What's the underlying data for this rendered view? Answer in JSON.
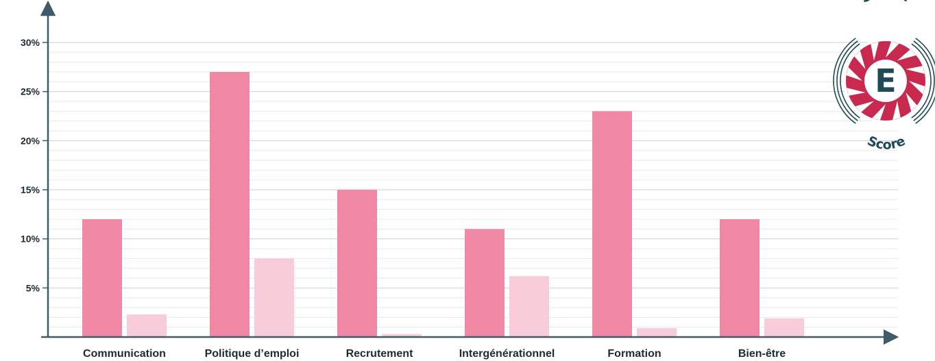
{
  "chart_data": {
    "type": "bar",
    "categories": [
      "Communication",
      "Politique d’emploi",
      "Recrutement",
      "Intergénérationnel",
      "Formation",
      "Bien-être"
    ],
    "series": [
      {
        "values": [
          12,
          27,
          15,
          11,
          23,
          12
        ]
      },
      {
        "values": [
          2.3,
          8,
          0.3,
          6.2,
          0.9,
          1.9
        ]
      }
    ],
    "ylim": [
      0,
      30
    ],
    "y_ticks": [
      5,
      10,
      15,
      20,
      25,
      30
    ],
    "y_tick_labels": [
      "5%",
      "10%",
      "15%",
      "20%",
      "25%",
      "30%"
    ],
    "grid": true,
    "colors": {
      "series_1": "#f087a4",
      "series_2": "#f8ccd8",
      "axis": "#3f5a69",
      "grid_major": "#c9cfd4",
      "grid_minor": "#e6e9ec"
    }
  },
  "logo": {
    "top_text": "Senior",
    "center_letter": "E",
    "bottom_text": "Score",
    "color_dark": "#1f4a57",
    "color_red": "#c8294e"
  }
}
